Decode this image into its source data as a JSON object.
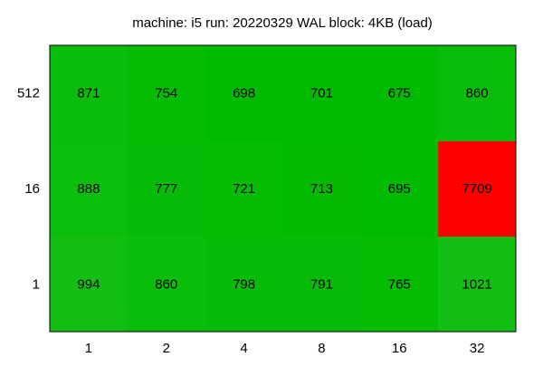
{
  "chart_data": {
    "type": "heatmap",
    "title": "machine: i5 run: 20220329 WAL block: 4KB (load)",
    "xlabel": "",
    "ylabel": "",
    "x_categories": [
      "1",
      "2",
      "4",
      "8",
      "16",
      "32"
    ],
    "y_categories": [
      "1",
      "16",
      "512"
    ],
    "values": [
      [
        994,
        860,
        798,
        791,
        765,
        1021
      ],
      [
        888,
        777,
        721,
        713,
        695,
        7709
      ],
      [
        871,
        754,
        698,
        701,
        675,
        860
      ]
    ],
    "color_min": "#00bb00",
    "color_mid": "#18c018",
    "color_max": "#ff0000",
    "grid": false,
    "legend": "none"
  }
}
